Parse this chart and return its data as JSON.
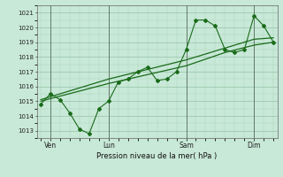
{
  "xlabel": "Pression niveau de la mer( hPa )",
  "ylim": [
    1012.5,
    1021.5
  ],
  "xlim": [
    -0.2,
    12.2
  ],
  "yticks": [
    1013,
    1014,
    1015,
    1016,
    1017,
    1018,
    1019,
    1020,
    1021
  ],
  "background_color": "#c8e8d8",
  "grid_color_major": "#88bb99",
  "grid_color_minor": "#a8d8b8",
  "line_color": "#1a6b1a",
  "xtick_labels": [
    "Ven",
    "Lun",
    "Sam",
    "Dim"
  ],
  "xtick_positions": [
    0.5,
    3.5,
    7.5,
    11.0
  ],
  "vline_positions": [
    0.5,
    3.5,
    7.5,
    11.0
  ],
  "line1_x": [
    0,
    0.5,
    1.0,
    1.5,
    2.0,
    2.5,
    3.0,
    3.5,
    4.0,
    4.5,
    5.0,
    5.5,
    6.0,
    6.5,
    7.0,
    7.5,
    8.0,
    8.5,
    9.0,
    9.5,
    10.0,
    10.5,
    11.0,
    11.5,
    12.0
  ],
  "line1_y": [
    1014.8,
    1015.5,
    1015.1,
    1014.2,
    1013.1,
    1012.8,
    1014.5,
    1015.0,
    1016.3,
    1016.5,
    1017.0,
    1017.3,
    1016.4,
    1016.5,
    1017.0,
    1018.5,
    1020.5,
    1020.5,
    1020.1,
    1018.5,
    1018.3,
    1018.5,
    1020.8,
    1020.1,
    1019.0
  ],
  "line2_x": [
    0,
    3.5,
    7.5,
    9.5,
    11.0,
    12.0
  ],
  "line2_y": [
    1015.0,
    1016.2,
    1017.4,
    1018.3,
    1018.8,
    1019.0
  ],
  "line3_x": [
    0,
    3.5,
    7.5,
    9.5,
    11.0,
    12.0
  ],
  "line3_y": [
    1015.1,
    1016.5,
    1017.8,
    1018.6,
    1019.2,
    1019.3
  ]
}
